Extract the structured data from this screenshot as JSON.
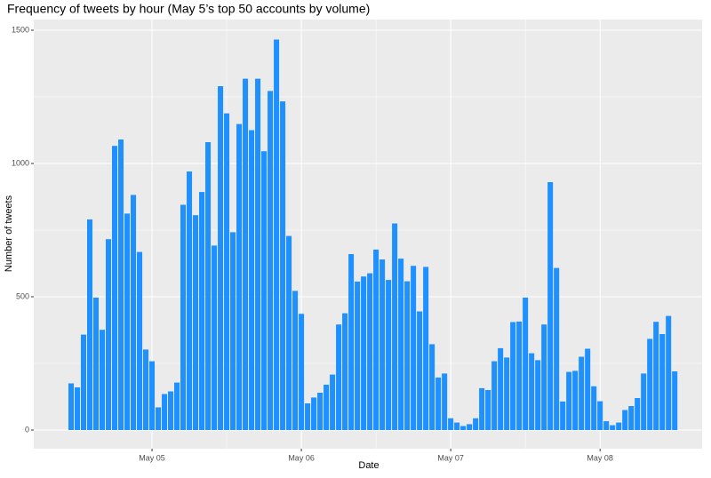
{
  "chart_data": {
    "type": "bar",
    "title": "Frequency of tweets by hour (May 5’s top 50 accounts by volume)",
    "x_label": "Date",
    "y_label": "Number of tweets",
    "color": "#1E90FF",
    "grid": true,
    "x": [
      -13,
      -12,
      -11,
      -10,
      -9,
      -8,
      -7,
      -6,
      -5,
      -4,
      -3,
      -2,
      -1,
      0,
      1,
      2,
      3,
      4,
      5,
      6,
      7,
      8,
      9,
      10,
      11,
      12,
      13,
      14,
      15,
      16,
      17,
      18,
      19,
      20,
      21,
      22,
      23,
      24,
      25,
      26,
      27,
      28,
      29,
      30,
      31,
      32,
      33,
      34,
      35,
      36,
      37,
      38,
      39,
      40,
      41,
      42,
      43,
      44,
      45,
      46,
      47,
      48,
      49,
      50,
      51,
      52,
      53,
      54,
      55,
      56,
      57,
      58,
      59,
      60,
      61,
      62,
      63,
      64,
      65,
      66,
      67,
      68,
      69,
      70,
      71,
      72,
      73,
      74,
      75,
      76,
      77,
      78,
      79,
      80,
      81,
      82,
      83,
      84
    ],
    "values": [
      175,
      160,
      358,
      790,
      497,
      376,
      716,
      1066,
      1090,
      812,
      882,
      668,
      302,
      258,
      85,
      135,
      145,
      178,
      845,
      970,
      806,
      893,
      1080,
      692,
      1290,
      1188,
      742,
      1148,
      1318,
      1125,
      1318,
      1046,
      1272,
      1465,
      1233,
      728,
      522,
      436,
      100,
      122,
      140,
      170,
      208,
      396,
      438,
      660,
      557,
      576,
      588,
      677,
      640,
      563,
      775,
      643,
      558,
      616,
      445,
      612,
      322,
      197,
      212,
      44,
      28,
      15,
      22,
      44,
      157,
      150,
      258,
      307,
      272,
      405,
      407,
      497,
      288,
      262,
      396,
      930,
      608,
      107,
      218,
      222,
      275,
      305,
      164,
      108,
      33,
      18,
      28,
      75,
      90,
      120,
      212,
      342,
      406,
      360,
      428,
      220
    ],
    "xlim": [
      -19,
      88.4
    ],
    "xticks": [
      {
        "value": 0,
        "label": "May 05"
      },
      {
        "value": 24,
        "label": "May 06"
      },
      {
        "value": 48,
        "label": "May 07"
      },
      {
        "value": 72,
        "label": "May 08"
      }
    ],
    "ylim": [
      -70,
      1540
    ],
    "yticks": [
      0,
      500,
      1000,
      1500
    ]
  }
}
